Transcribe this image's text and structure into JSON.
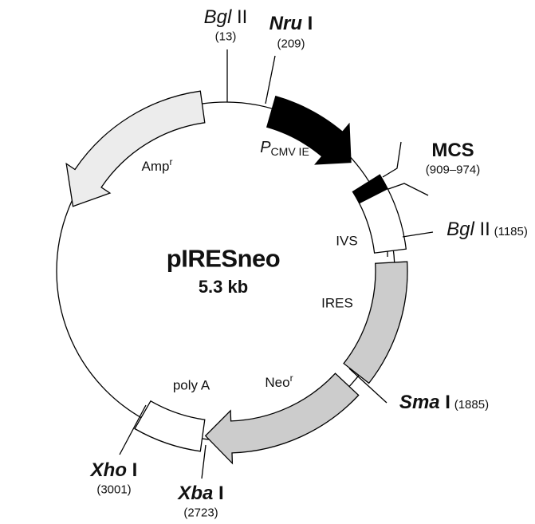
{
  "plasmid": {
    "name": "pIRESneo",
    "size": "5.3 kb"
  },
  "features": {
    "amp": {
      "label": "Amp",
      "sup": "r",
      "color": "#ececec"
    },
    "cmv": {
      "label": "P",
      "sub": "CMV  IE",
      "color": "#000000"
    },
    "mcs_box": {
      "color": "#000000"
    },
    "ivs": {
      "label": "IVS",
      "color": "#ffffff"
    },
    "ires": {
      "label": "IRES",
      "color": "#cccccc"
    },
    "neo": {
      "label": "Neo",
      "sup": "r",
      "color": "#cccccc"
    },
    "polya": {
      "label": "poly A",
      "color": "#ffffff"
    }
  },
  "sites": {
    "bglii_13": {
      "name_it": "Bgl",
      "name_rest": " II",
      "pos": "(13)"
    },
    "nrui": {
      "name_it": "Nru",
      "name_rest": " I",
      "pos": "(209)"
    },
    "mcs": {
      "name": "MCS",
      "pos": "(909–974)"
    },
    "bglii_1185": {
      "name_it": "Bgl",
      "name_rest": " II",
      "pos": "(1185)"
    },
    "smai": {
      "name_it": "Sma",
      "name_rest": " I",
      "pos": "(1885)"
    },
    "xbai": {
      "name_it": "Xba",
      "name_rest": " I",
      "pos": "(2723)"
    },
    "xhoi": {
      "name_it": "Xho",
      "name_rest": " I",
      "pos": "(3001)"
    }
  }
}
